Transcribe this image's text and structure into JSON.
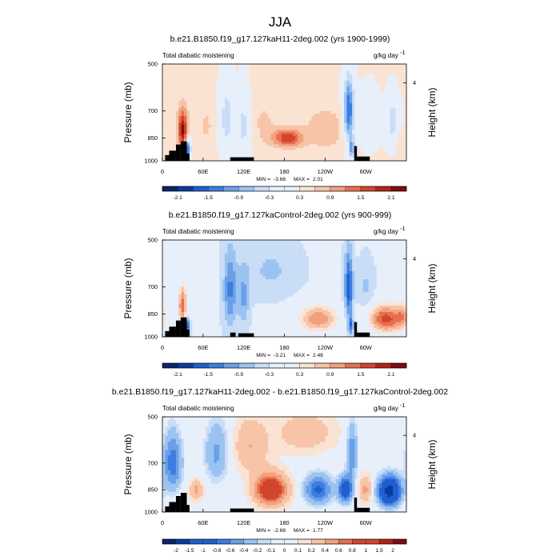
{
  "figure_title": "JJA",
  "colors": {
    "ocean_land_mask": "#000000",
    "palette": [
      "#08256b",
      "#0b3c9c",
      "#1f5fd0",
      "#3b7de0",
      "#6aa0e8",
      "#9bc3f2",
      "#c9ddf6",
      "#e7effb",
      "#fbe3d4",
      "#f7c4a8",
      "#f2a07c",
      "#e76f4d",
      "#d2452c",
      "#b2231b",
      "#7a0e0e"
    ]
  },
  "chart_data": [
    {
      "type": "heatmap",
      "title": "b.e21.B1850.f19_g17.127kaH11-2deg.002 (yrs 1900-1999)",
      "left_label": "Total diabatic moistening",
      "units_label": "g/kg day",
      "units_exponent": "-1",
      "ylabel": "Pressure (mb)",
      "ylabel_right": "Height (km)",
      "yticks": [
        "500",
        "700",
        "850",
        "1000"
      ],
      "yticks_right": [
        "4"
      ],
      "xticks": [
        "0",
        "60E",
        "120E",
        "180",
        "120W",
        "60W"
      ],
      "ylim": [
        1000,
        500
      ],
      "xlim": [
        0,
        360
      ],
      "min_label": "MIN =",
      "min_value": "-3.68",
      "max_label": "MAX =",
      "max_value": "2.01",
      "colorbar_labels": [
        "-2.1",
        "-1.5",
        "-0.9",
        "-0.3",
        "0.3",
        "0.9",
        "1.5",
        "2.1"
      ],
      "colorbar_levels": [
        -2.1,
        -1.8,
        -1.5,
        -1.2,
        -0.9,
        -0.6,
        -0.3,
        0,
        0.3,
        0.6,
        0.9,
        1.2,
        1.5,
        1.8,
        2.1
      ],
      "features": [
        {
          "lon": 30,
          "p": 800,
          "amp": 1.8,
          "slon": 7,
          "sp": 120
        },
        {
          "lon": 38,
          "p": 920,
          "amp": -2.0,
          "slon": 4,
          "sp": 60
        },
        {
          "lon": 65,
          "p": 780,
          "amp": 0.3,
          "slon": 12,
          "sp": 120
        },
        {
          "lon": 95,
          "p": 740,
          "amp": -0.9,
          "slon": 10,
          "sp": 180
        },
        {
          "lon": 120,
          "p": 780,
          "amp": -0.8,
          "slon": 9,
          "sp": 180
        },
        {
          "lon": 150,
          "p": 760,
          "amp": 0.3,
          "slon": 20,
          "sp": 140
        },
        {
          "lon": 185,
          "p": 850,
          "amp": 1.4,
          "slon": 22,
          "sp": 55
        },
        {
          "lon": 240,
          "p": 800,
          "amp": 0.5,
          "slon": 30,
          "sp": 120
        },
        {
          "lon": 275,
          "p": 700,
          "amp": -1.9,
          "slon": 8,
          "sp": 170
        },
        {
          "lon": 280,
          "p": 920,
          "amp": -1.4,
          "slon": 4,
          "sp": 70
        },
        {
          "lon": 305,
          "p": 750,
          "amp": -0.5,
          "slon": 14,
          "sp": 140
        },
        {
          "lon": 340,
          "p": 760,
          "amp": -0.9,
          "slon": 10,
          "sp": 130
        },
        {
          "lon": 350,
          "p": 860,
          "amp": 0.3,
          "slon": 10,
          "sp": 80
        }
      ],
      "base": 0.35,
      "terrain": [
        {
          "lon0": 4,
          "lon1": 10,
          "p": 960
        },
        {
          "lon0": 10,
          "lon1": 20,
          "p": 930
        },
        {
          "lon0": 20,
          "lon1": 27,
          "p": 890
        },
        {
          "lon0": 27,
          "lon1": 36,
          "p": 870
        },
        {
          "lon0": 36,
          "lon1": 40,
          "p": 950
        },
        {
          "lon0": 100,
          "lon1": 135,
          "p": 975
        },
        {
          "lon0": 283,
          "lon1": 287,
          "p": 900
        },
        {
          "lon0": 287,
          "lon1": 306,
          "p": 970
        }
      ]
    },
    {
      "type": "heatmap",
      "title": "b.e21.B1850.f19_g17.127kaControl-2deg.002 (yrs 900-999)",
      "left_label": "Total diabatic moistening",
      "units_label": "g/kg day",
      "units_exponent": "-1",
      "ylabel": "Pressure (mb)",
      "ylabel_right": "Height (km)",
      "yticks": [
        "500",
        "700",
        "850",
        "1000"
      ],
      "yticks_right": [
        "4"
      ],
      "xticks": [
        "0",
        "60E",
        "120E",
        "180",
        "120W",
        "60W"
      ],
      "ylim": [
        1000,
        500
      ],
      "xlim": [
        0,
        360
      ],
      "min_label": "MIN =",
      "min_value": "-3.21",
      "max_label": "MAX =",
      "max_value": "2.48",
      "colorbar_labels": [
        "-2.1",
        "-1.5",
        "-0.9",
        "-0.3",
        "0.3",
        "0.9",
        "1.5",
        "2.1"
      ],
      "colorbar_levels": [
        -2.1,
        -1.8,
        -1.5,
        -1.2,
        -0.9,
        -0.6,
        -0.3,
        0,
        0.3,
        0.6,
        0.9,
        1.2,
        1.5,
        1.8,
        2.1
      ],
      "features": [
        {
          "lon": 30,
          "p": 800,
          "amp": 1.6,
          "slon": 7,
          "sp": 120
        },
        {
          "lon": 36,
          "p": 930,
          "amp": -1.8,
          "slon": 4,
          "sp": 60
        },
        {
          "lon": 65,
          "p": 800,
          "amp": 0.3,
          "slon": 10,
          "sp": 100
        },
        {
          "lon": 100,
          "p": 720,
          "amp": -1.0,
          "slon": 10,
          "sp": 200
        },
        {
          "lon": 120,
          "p": 760,
          "amp": -0.7,
          "slon": 8,
          "sp": 160
        },
        {
          "lon": 160,
          "p": 620,
          "amp": -0.4,
          "slon": 40,
          "sp": 120
        },
        {
          "lon": 230,
          "p": 880,
          "amp": 1.4,
          "slon": 30,
          "sp": 90
        },
        {
          "lon": 275,
          "p": 700,
          "amp": -1.5,
          "slon": 6,
          "sp": 170
        },
        {
          "lon": 278,
          "p": 920,
          "amp": -1.2,
          "slon": 4,
          "sp": 60
        },
        {
          "lon": 300,
          "p": 700,
          "amp": -0.4,
          "slon": 12,
          "sp": 120
        },
        {
          "lon": 330,
          "p": 880,
          "amp": 1.9,
          "slon": 25,
          "sp": 90
        },
        {
          "lon": 355,
          "p": 860,
          "amp": 0.8,
          "slon": 10,
          "sp": 90
        }
      ],
      "base": -0.25,
      "terrain": [
        {
          "lon0": 4,
          "lon1": 10,
          "p": 960
        },
        {
          "lon0": 10,
          "lon1": 20,
          "p": 930
        },
        {
          "lon0": 20,
          "lon1": 27,
          "p": 890
        },
        {
          "lon0": 27,
          "lon1": 36,
          "p": 870
        },
        {
          "lon0": 36,
          "lon1": 40,
          "p": 950
        },
        {
          "lon0": 100,
          "lon1": 108,
          "p": 970
        },
        {
          "lon0": 112,
          "lon1": 135,
          "p": 975
        },
        {
          "lon0": 283,
          "lon1": 287,
          "p": 900
        },
        {
          "lon0": 287,
          "lon1": 306,
          "p": 970
        }
      ]
    },
    {
      "type": "heatmap",
      "title": "b.e21.B1850.f19_g17.127kaH11-2deg.002 - b.e21.B1850.f19_g17.127kaControl-2deg.002",
      "left_label": "Total diabatic moistening",
      "units_label": "g/kg day",
      "units_exponent": "-1",
      "ylabel": "Pressure (mb)",
      "ylabel_right": "Height (km)",
      "yticks": [
        "500",
        "700",
        "850",
        "1000"
      ],
      "yticks_right": [
        "4"
      ],
      "xticks": [
        "0",
        "60E",
        "120E",
        "180",
        "120W",
        "60W"
      ],
      "ylim": [
        1000,
        500
      ],
      "xlim": [
        0,
        360
      ],
      "min_label": "MIN =",
      "min_value": "-2.68",
      "max_label": "MAX =",
      "max_value": "1.77",
      "colorbar_labels": [
        "-2",
        "-1.5",
        "-1",
        "-0.8",
        "-0.6",
        "-0.4",
        "-0.2",
        "-0.1",
        "0",
        "0.1",
        "0.2",
        "0.4",
        "0.6",
        "0.8",
        "1",
        "1.5",
        "2"
      ],
      "colorbar_levels": [
        -2,
        -1.5,
        -1,
        -0.8,
        -0.6,
        -0.4,
        -0.2,
        -0.1,
        0,
        0.1,
        0.2,
        0.4,
        0.6,
        0.8,
        1,
        1.5,
        2
      ],
      "features": [
        {
          "lon": 15,
          "p": 700,
          "amp": -0.8,
          "slon": 14,
          "sp": 150
        },
        {
          "lon": 50,
          "p": 850,
          "amp": 0.4,
          "slon": 10,
          "sp": 60
        },
        {
          "lon": 80,
          "p": 650,
          "amp": -0.5,
          "slon": 18,
          "sp": 150
        },
        {
          "lon": 130,
          "p": 620,
          "amp": 0.35,
          "slon": 25,
          "sp": 120
        },
        {
          "lon": 160,
          "p": 850,
          "amp": 1.2,
          "slon": 22,
          "sp": 90
        },
        {
          "lon": 230,
          "p": 850,
          "amp": -0.9,
          "slon": 20,
          "sp": 90
        },
        {
          "lon": 270,
          "p": 850,
          "amp": -1.2,
          "slon": 10,
          "sp": 80
        },
        {
          "lon": 280,
          "p": 650,
          "amp": -0.6,
          "slon": 8,
          "sp": 140
        },
        {
          "lon": 300,
          "p": 850,
          "amp": 0.4,
          "slon": 10,
          "sp": 80
        },
        {
          "lon": 335,
          "p": 860,
          "amp": -1.8,
          "slon": 16,
          "sp": 90
        },
        {
          "lon": 210,
          "p": 560,
          "amp": 0.3,
          "slon": 40,
          "sp": 80
        }
      ],
      "base": 0.05,
      "terrain": [
        {
          "lon0": 4,
          "lon1": 10,
          "p": 960
        },
        {
          "lon0": 10,
          "lon1": 20,
          "p": 930
        },
        {
          "lon0": 20,
          "lon1": 27,
          "p": 890
        },
        {
          "lon0": 27,
          "lon1": 36,
          "p": 870
        },
        {
          "lon0": 36,
          "lon1": 40,
          "p": 950
        },
        {
          "lon0": 100,
          "lon1": 135,
          "p": 975
        },
        {
          "lon0": 283,
          "lon1": 287,
          "p": 900
        },
        {
          "lon0": 287,
          "lon1": 306,
          "p": 970
        }
      ]
    }
  ]
}
